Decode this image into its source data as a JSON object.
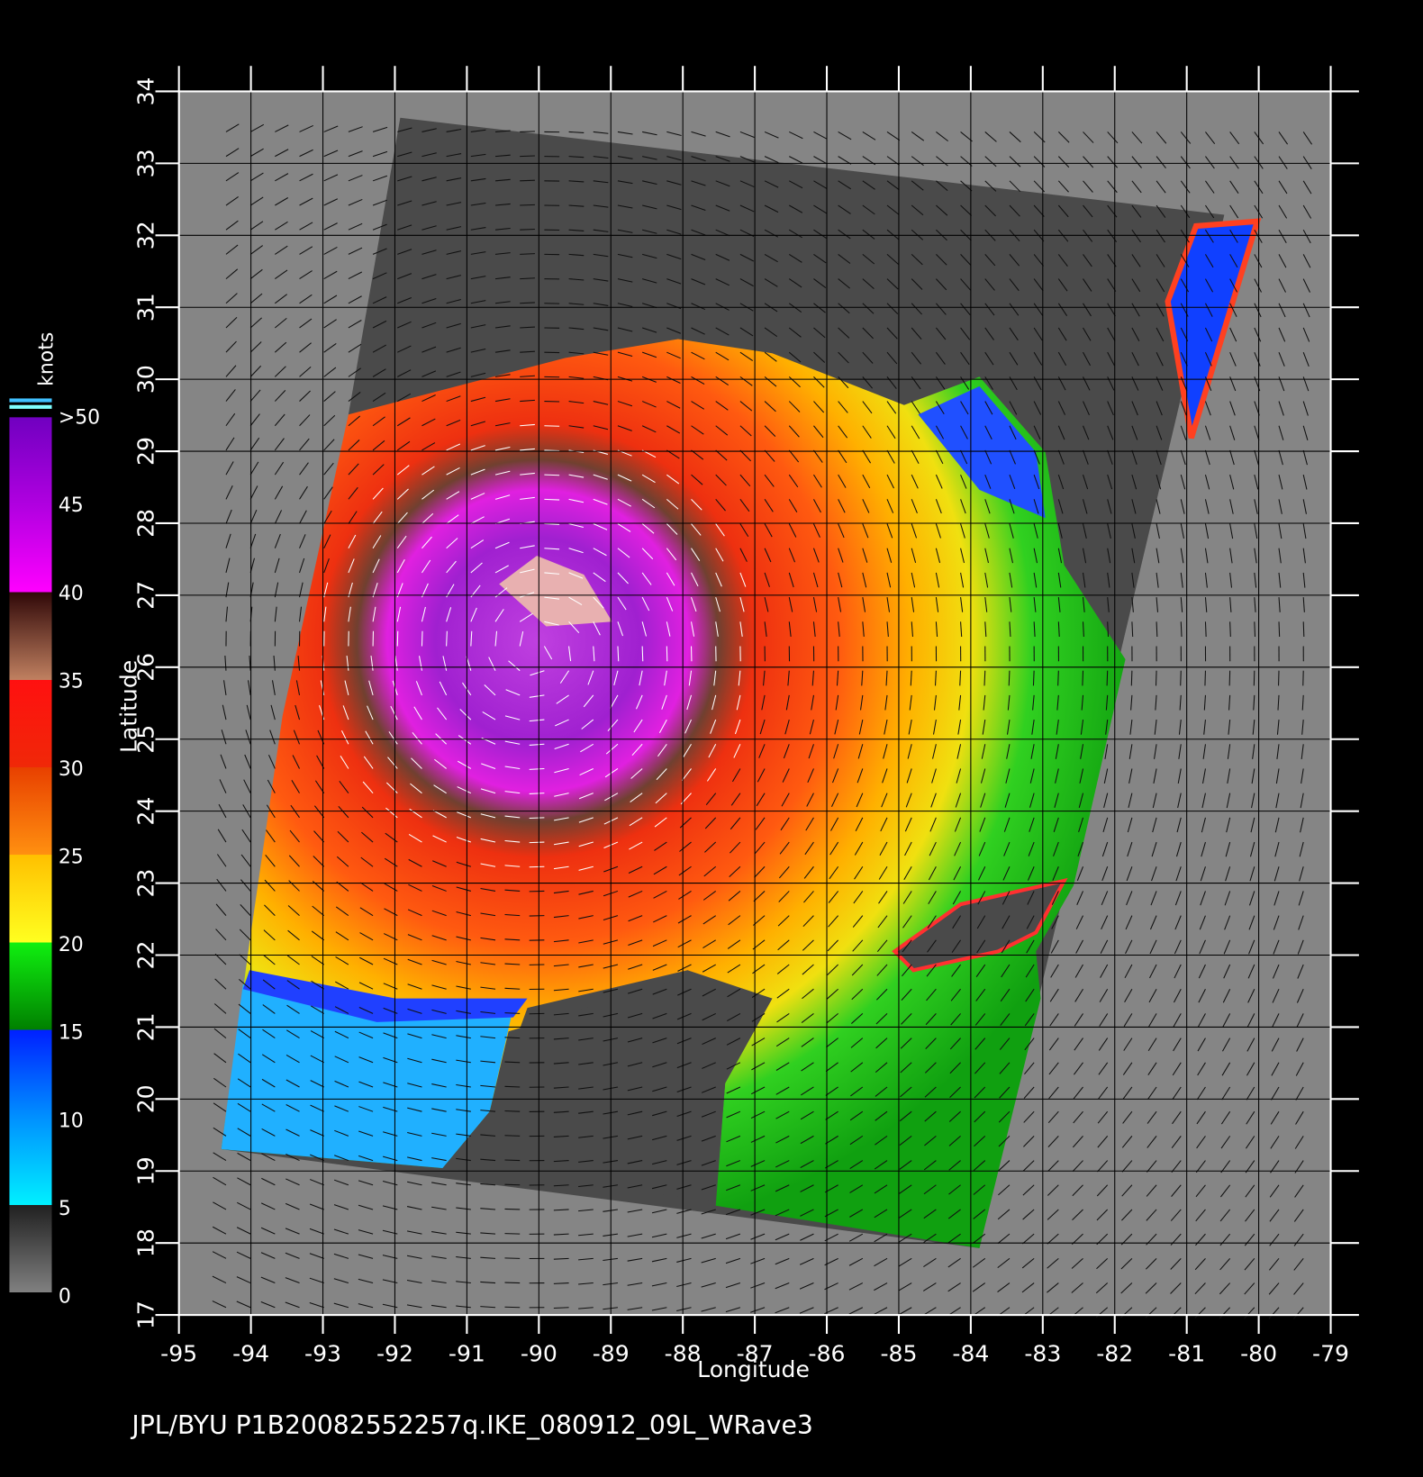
{
  "colorbar": {
    "unit": "knots",
    "labels": [
      {
        "value": 50,
        "label": ">50"
      },
      45,
      40,
      35,
      30,
      25,
      20,
      15,
      10,
      5,
      0
    ]
  },
  "map": {
    "x_axis": {
      "label": "Longitude",
      "ticks": [
        -95,
        -94,
        -93,
        -92,
        -91,
        -90,
        -89,
        -88,
        -87,
        -86,
        -85,
        -84,
        -83,
        -82,
        -81,
        -80,
        -79
      ]
    },
    "y_axis": {
      "label": "Latitude",
      "ticks": [
        17,
        18,
        19,
        20,
        21,
        22,
        23,
        24,
        25,
        26,
        27,
        28,
        29,
        30,
        31,
        32,
        33,
        34
      ]
    }
  },
  "footer": "JPL/BYU  P1B20082552257q.IKE_080912_09L_WRave3"
}
